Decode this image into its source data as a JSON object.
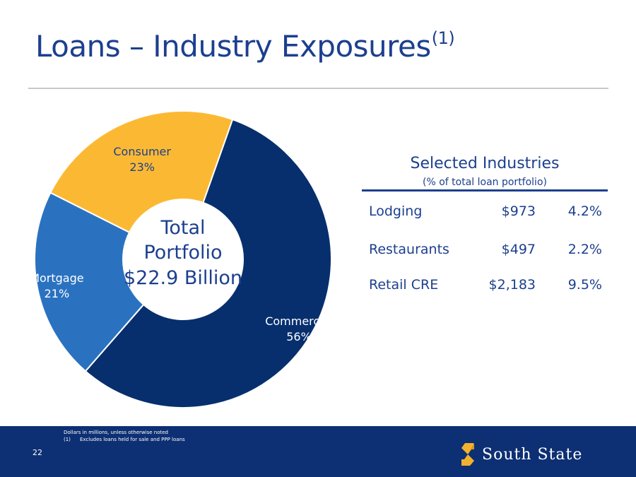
{
  "slide": {
    "title": "Loans – Industry Exposures",
    "title_sup": "(1)",
    "page_number": "22"
  },
  "chart_data": {
    "type": "pie",
    "style": "donut",
    "categories": [
      "Commercial",
      "Mortgage",
      "Consumer"
    ],
    "values": [
      56,
      21,
      23
    ],
    "value_labels": [
      "56%",
      "21%",
      "23%"
    ],
    "center_label": [
      "Total",
      "Portfolio",
      "$22.9 Billion"
    ],
    "colors": [
      "#072f6e",
      "#2a72c0",
      "#fbb933"
    ]
  },
  "table": {
    "title": "Selected Industries",
    "subtitle": "(% of total loan portfolio)",
    "rows": [
      {
        "name": "Lodging",
        "amount": "$973",
        "pct": "4.2%"
      },
      {
        "name": "Restaurants",
        "amount": "$497",
        "pct": "2.2%"
      },
      {
        "name": "Retail CRE",
        "amount": "$2,183",
        "pct": "9.5%"
      }
    ]
  },
  "footer": {
    "note1": "Dollars in millions, unless otherwise noted",
    "note2_num": "(1)",
    "note2": "Excludes loans held for sale and PPP loans",
    "logo_text": "South State",
    "logo_icon": "south-state-s-icon",
    "colors": {
      "band": "#0d2f73",
      "logo_icon": "#f3b22e"
    }
  }
}
